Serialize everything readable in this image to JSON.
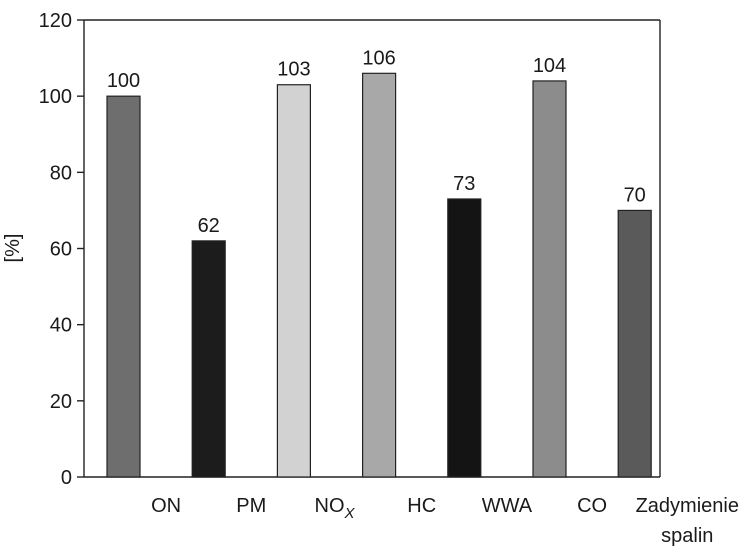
{
  "chart_data": {
    "type": "bar",
    "ylabel": "[%]",
    "xlabel": "",
    "ylim": [
      0,
      120
    ],
    "yticks": [
      0,
      20,
      40,
      60,
      80,
      100,
      120
    ],
    "grid": false,
    "categories": [
      "ON",
      "PM",
      "NO_X",
      "HC",
      "WWA",
      "CO",
      "Zadymienie spalin"
    ],
    "category_labels": [
      {
        "lines": [
          "ON"
        ]
      },
      {
        "lines": [
          "PM"
        ]
      },
      {
        "lines": [
          "NO"
        ],
        "subscript": "X"
      },
      {
        "lines": [
          "HC"
        ]
      },
      {
        "lines": [
          "WWA"
        ]
      },
      {
        "lines": [
          "CO"
        ]
      },
      {
        "lines": [
          "Zadymienie",
          "spalin"
        ]
      }
    ],
    "values": [
      100,
      62,
      103,
      106,
      73,
      104,
      70
    ],
    "data_labels": [
      "100",
      "62",
      "103",
      "106",
      "73",
      "104",
      "70"
    ],
    "colors": [
      "#6e6e6e",
      "#1c1c1c",
      "#d2d2d2",
      "#a8a8a8",
      "#141414",
      "#8c8c8c",
      "#5a5a5a"
    ]
  }
}
